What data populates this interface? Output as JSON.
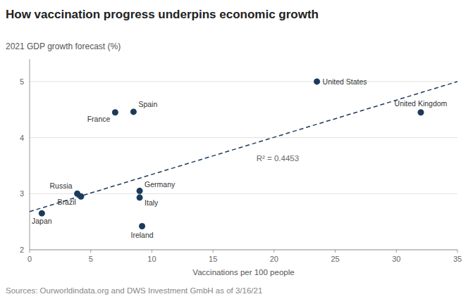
{
  "chart_data": {
    "type": "scatter",
    "title": "How vaccination progress underpins economic growth",
    "ylabel": "2021 GDP growth forecast (%)",
    "xlabel": "Vaccinations per 100 people",
    "source": "Sources: Ourworldindata.org and DWS Investment GmbH as of 3/16/21",
    "annotations": [
      "R² = 0.4453"
    ],
    "series": [
      {
        "type": "scatter",
        "color": "#1b3a5c",
        "marker": "circle",
        "labels": [
          "Japan",
          "Russia",
          "Brazil",
          "France",
          "Spain",
          "Germany",
          "Italy",
          "Ireland",
          "United States",
          "United Kingdom"
        ],
        "x": [
          1.0,
          3.9,
          4.2,
          7.0,
          8.5,
          9.0,
          9.0,
          9.2,
          23.5,
          32.0
        ],
        "values": [
          2.65,
          3.0,
          2.95,
          4.45,
          4.46,
          3.05,
          2.93,
          2.42,
          5.0,
          4.45
        ]
      },
      {
        "type": "line",
        "color": "#1b3a5c",
        "line_style": "dashed",
        "x": [
          0,
          35
        ],
        "values": [
          2.68,
          5.0
        ]
      }
    ],
    "xlim": [
      0,
      35
    ],
    "ylim": [
      2,
      5.4
    ],
    "xticks": [
      0,
      5,
      10,
      15,
      20,
      25,
      30,
      35
    ],
    "yticks": [
      2,
      3,
      4,
      5
    ],
    "grid": true
  }
}
